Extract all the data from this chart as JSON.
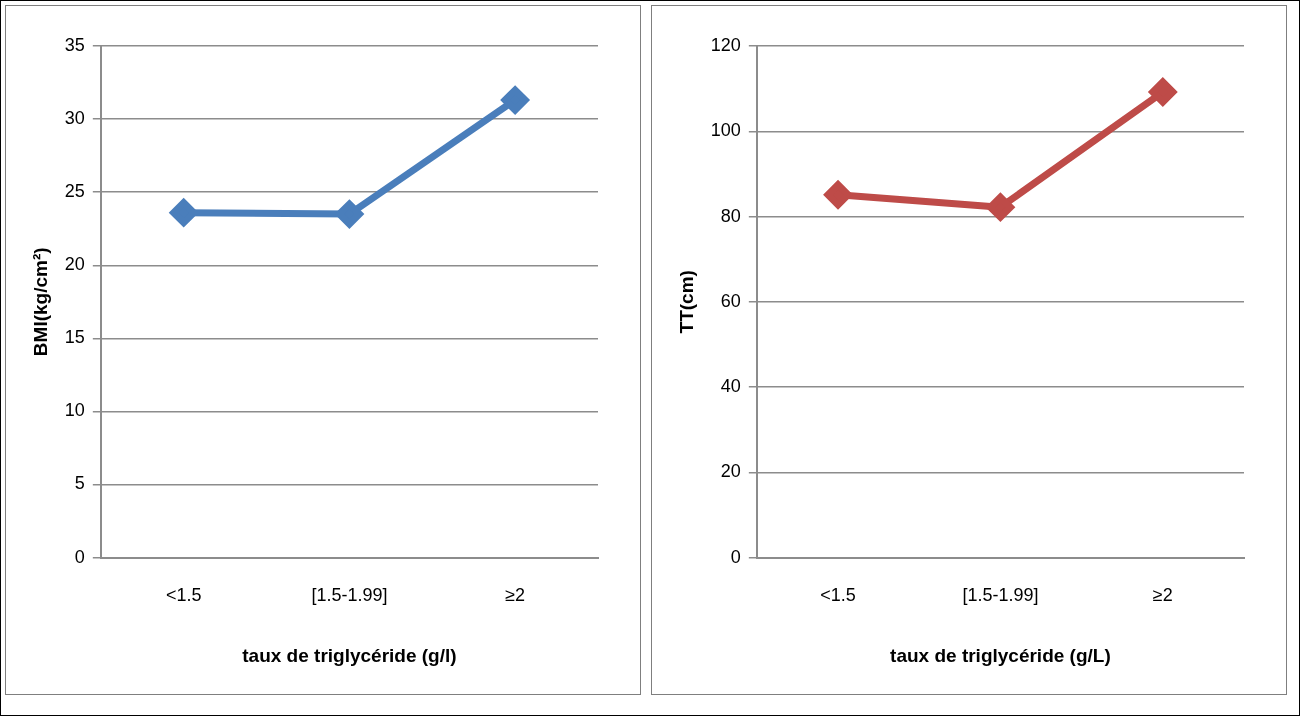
{
  "chart_data": [
    {
      "type": "line",
      "xlabel": "taux de triglycéride (g/l)",
      "ylabel": "BMI(kg/cm²)",
      "categories": [
        "<1.5",
        "[1.5-1.99]",
        "≥2"
      ],
      "series": [
        {
          "color": "#4a7ebb",
          "values": [
            23.6,
            23.5,
            31.3
          ]
        }
      ],
      "ylim": [
        0,
        35
      ],
      "yticks": [
        0,
        5,
        10,
        15,
        20,
        25,
        30,
        35
      ],
      "grid": "y",
      "legend": false,
      "marker": "diamond",
      "line_style": "solid"
    },
    {
      "type": "line",
      "xlabel": "taux de triglycéride (g/L)",
      "ylabel": "TT(cm)",
      "categories": [
        "<1.5",
        "[1.5-1.99]",
        "≥2"
      ],
      "series": [
        {
          "color": "#be4b48",
          "values": [
            85.1,
            82.2,
            109.2
          ]
        }
      ],
      "ylim": [
        0,
        120
      ],
      "yticks": [
        0,
        20,
        40,
        60,
        80,
        100,
        120
      ],
      "grid": "y",
      "legend": false,
      "marker": "diamond",
      "line_style": "solid"
    }
  ]
}
